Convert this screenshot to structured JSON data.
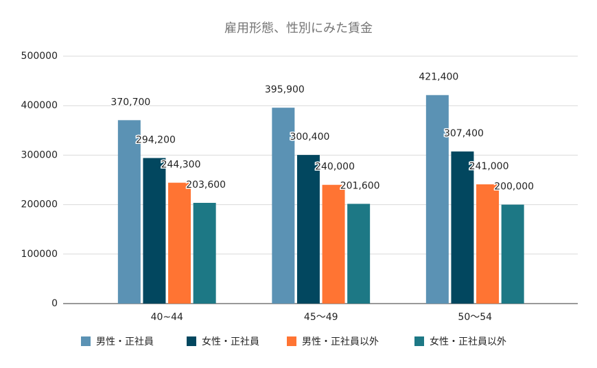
{
  "chart_data": {
    "type": "bar",
    "title": "雇用形態、性別にみた賃金",
    "categories": [
      "40~44",
      "45～49",
      "50～54"
    ],
    "series": [
      {
        "name": "男性・正社員",
        "color": "#5b92b4",
        "values": [
          370700,
          395900,
          421400
        ],
        "value_labels": [
          "370,700",
          "395,900",
          "421,400"
        ]
      },
      {
        "name": "女性・正社員",
        "color": "#02475f",
        "values": [
          294200,
          300400,
          307400
        ],
        "value_labels": [
          "294,200",
          "300,400",
          "307,400"
        ]
      },
      {
        "name": "男性・正社員以外",
        "color": "#ff7433",
        "values": [
          244300,
          240000,
          241000
        ],
        "value_labels": [
          "244,300",
          "240,000",
          "241,000"
        ]
      },
      {
        "name": "女性・正社員以外",
        "color": "#1d7885",
        "values": [
          203600,
          201600,
          200000
        ],
        "value_labels": [
          "203,600",
          "201,600",
          "200,000"
        ]
      }
    ],
    "ylim": [
      0,
      500000
    ],
    "yticks": [
      0,
      100000,
      200000,
      300000,
      400000,
      500000
    ],
    "grid": true,
    "legend": "bottom"
  }
}
